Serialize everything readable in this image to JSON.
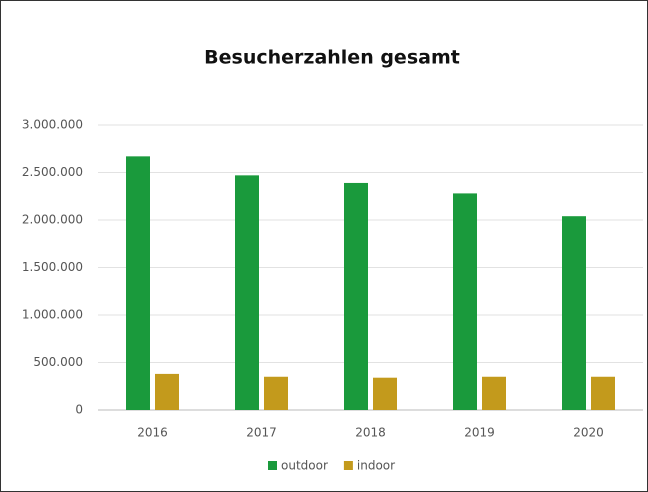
{
  "chart_data": {
    "type": "bar",
    "title": "Besucherzahlen gesamt",
    "categories": [
      "2016",
      "2017",
      "2018",
      "2019",
      "2020"
    ],
    "series": [
      {
        "name": "outdoor",
        "color": "#1a9a3c",
        "values": [
          2670000,
          2470000,
          2390000,
          2280000,
          2040000
        ]
      },
      {
        "name": "indoor",
        "color": "#c39a1c",
        "values": [
          380000,
          350000,
          340000,
          350000,
          350000
        ]
      }
    ],
    "ylim": [
      0,
      3000000
    ],
    "yticks": [
      0,
      {
        "value": 500000,
        "label": "500.000"
      },
      {
        "value": 1000000,
        "label": "1.000.000"
      },
      {
        "value": 1500000,
        "label": "1.500.000"
      },
      {
        "value": 2000000,
        "label": "2.000.000"
      },
      {
        "value": 2500000,
        "label": "2.500.000"
      },
      {
        "value": 3000000,
        "label": "3.000.000"
      }
    ],
    "grid": true,
    "legend": "bottom"
  }
}
